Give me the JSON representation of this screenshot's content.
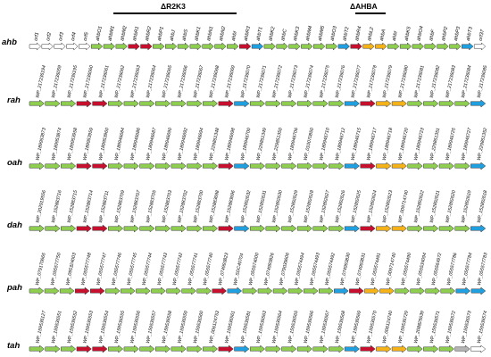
{
  "figure": {
    "deletion_bars": [
      {
        "label": "ΔR2K3"
      },
      {
        "label": "ΔAHBA"
      }
    ],
    "clusters": [
      {
        "name": "ahb",
        "ids": [
          "orf1",
          "orf2",
          "orf3",
          "orf4",
          "orf5",
          "ahbO1",
          "ahbM1",
          "ahbM2",
          "ahbR1",
          "ahbR2",
          "ahbP1",
          "ahbJ",
          "ahbS",
          "ahbK1",
          "ahbN1",
          "ahbN2",
          "ahbI",
          "ahbR3",
          "ahbT1",
          "ahbK2",
          "ahbC",
          "ahbK3",
          "ahbM4",
          "ahbM5",
          "ahbO3",
          "ahbT2",
          "ahbR4",
          "ahbL2",
          "ahbA",
          "ahbI",
          "ahbK5",
          "ahbO4",
          "ahbF",
          "ahbP2",
          "ahbP3",
          "ahbT3",
          "orf37"
        ],
        "colors": [
          "w",
          "w",
          "w",
          "w",
          "w",
          "g",
          "g",
          "g",
          "r",
          "r",
          "g",
          "g",
          "g",
          "g",
          "g",
          "g",
          "g",
          "r",
          "b",
          "g",
          "g",
          "g",
          "g",
          "g",
          "g",
          "b",
          "r",
          "y",
          "y",
          "g",
          "g",
          "g",
          "g",
          "g",
          "g",
          "b",
          "w"
        ]
      },
      {
        "name": "rah",
        "ids": [
          "WP_217236194",
          "WP_217236059",
          "WP_217236195",
          "WP_217236060",
          "WP_217236061",
          "WP_217236062",
          "WP_217236063",
          "WP_217236064",
          "WP_217236065",
          "WP_217236066",
          "WP_217236067",
          "WP_217236068",
          "WP_217236069",
          "WP_217236070",
          "WP_217236071",
          "WP_217236072",
          "WP_217236073",
          "WP_217236074",
          "WP_217236075",
          "WP_217236076",
          "WP_217236077",
          "WP_217236078",
          "WP_217236079",
          "WP_217236080",
          "WP_217236081",
          "WP_217236082",
          "WP_217236083",
          "WP_217236084",
          "WP_217236085"
        ],
        "colors": [
          "g",
          "g",
          "g",
          "r",
          "r",
          "g",
          "g",
          "g",
          "g",
          "g",
          "g",
          "g",
          "r",
          "b",
          "g",
          "g",
          "g",
          "g",
          "g",
          "g",
          "b",
          "r",
          "y",
          "y",
          "g",
          "g",
          "g",
          "g",
          "b"
        ]
      },
      {
        "name": "oah",
        "ids": [
          "WP_189953873",
          "WP_189953874",
          "WP_189953958",
          "WP_189953959",
          "WP_189953960",
          "WP_189946684",
          "WP_189946686",
          "WP_189946687",
          "WP_189946690",
          "WP_189946692",
          "WP_189946694",
          "WP_229851348",
          "WP_189946698",
          "WP_189946700",
          "WP_229851349",
          "WP_229851350",
          "WP_189946706",
          "WP_010070850",
          "WP_189946710",
          "WP_189946712",
          "WP_189946715",
          "WP_189946717",
          "WP_189946718",
          "WP_189946720",
          "WP_189946723",
          "WP_229851351",
          "WP_189946725",
          "WP_189946727",
          "WP_229851352"
        ],
        "colors": [
          "g",
          "g",
          "g",
          "r",
          "r",
          "g",
          "g",
          "g",
          "g",
          "g",
          "g",
          "g",
          "r",
          "b",
          "g",
          "g",
          "g",
          "g",
          "g",
          "g",
          "b",
          "r",
          "y",
          "y",
          "g",
          "g",
          "g",
          "g",
          "b"
        ]
      },
      {
        "name": "dah",
        "ids": [
          "WP_202919556",
          "WP_152883716",
          "WP_152883715",
          "WP_152883714",
          "WP_152883711",
          "WP_152883709",
          "WP_152883707",
          "WP_152883705",
          "WP_152883703",
          "WP_152883702",
          "WP_152883700",
          "WP_152883698",
          "WP_152883696",
          "WP_152892632",
          "WP_152892631",
          "WP_152892630",
          "WP_152892629",
          "WP_152892628",
          "WP_152892627",
          "WP_152892626",
          "WP_152892625",
          "WP_152892624",
          "WP_152892623",
          "WP_009714740",
          "WP_152892622",
          "WP_152892621",
          "WP_152892620",
          "WP_152892619",
          "WP_152892618"
        ],
        "colors": [
          "g",
          "g",
          "g",
          "r",
          "r",
          "g",
          "g",
          "g",
          "g",
          "g",
          "g",
          "g",
          "r",
          "b",
          "g",
          "g",
          "g",
          "g",
          "g",
          "g",
          "b",
          "r",
          "y",
          "y",
          "g",
          "g",
          "g",
          "g",
          "b"
        ]
      },
      {
        "name": "pah",
        "ids": [
          "WP_079170665",
          "WP_055577750",
          "WP_095324003",
          "WP_055577748",
          "WP_055577747",
          "WP_055577746",
          "WP_055577745",
          "WP_055577744",
          "WP_055577743",
          "WP_055577742",
          "WP_055577741",
          "WP_055577740",
          "WP_074993823",
          "WP_SDC40704",
          "WP_055574000",
          "WP_074993826",
          "WP_079039606",
          "WP_055574494",
          "WP_055574493",
          "WP_055574492",
          "WP_074993830",
          "WP_074993831",
          "WP_055574491",
          "WP_009714740",
          "WP_055574490",
          "WP_055534094",
          "WP_055564972",
          "WP_055577786",
          "WP_055577784",
          "WP_055577783"
        ],
        "colors": [
          "g",
          "g",
          "g",
          "r",
          "r",
          "g",
          "g",
          "g",
          "g",
          "g",
          "g",
          "g",
          "r",
          "b",
          "g",
          "g",
          "g",
          "g",
          "g",
          "g",
          "b",
          "r",
          "y",
          "y",
          "g",
          "g",
          "g",
          "g",
          "b",
          "b"
        ]
      },
      {
        "name": "tah",
        "ids": [
          "WP_159536127",
          "WP_159536551",
          "WP_159536552",
          "WP_159536553",
          "WP_159536554",
          "WP_159536555",
          "WP_159536556",
          "WP_159536557",
          "WP_159536558",
          "WP_159536559",
          "WP_159536560",
          "WP_006124753",
          "WP_159536561",
          "WP_159536581",
          "WP_159536563",
          "WP_159536564",
          "WP_159536565",
          "WP_159536566",
          "WP_159536567",
          "WP_159536568",
          "WP_159536569",
          "WP_159536570",
          "WP_006124740",
          "WP_159536729",
          "WP_208825639",
          "WP_159536571",
          "WP_159536572",
          "WP_159536573",
          "WP_159536574"
        ],
        "colors": [
          "g",
          "g",
          "g",
          "r",
          "r",
          "g",
          "g",
          "g",
          "g",
          "g",
          "g",
          "g",
          "r",
          "b",
          "g",
          "g",
          "g",
          "g",
          "g",
          "g",
          "b",
          "r",
          "y",
          "y",
          "g",
          "g",
          "g",
          "gr",
          "w"
        ]
      }
    ],
    "palette": {
      "g": "#8fcf4f",
      "r": "#c8102e",
      "b": "#1fa0e0",
      "y": "#f6b318",
      "w": "#ffffff",
      "gr": "#b5b5b5",
      "stroke": "#333333"
    }
  }
}
